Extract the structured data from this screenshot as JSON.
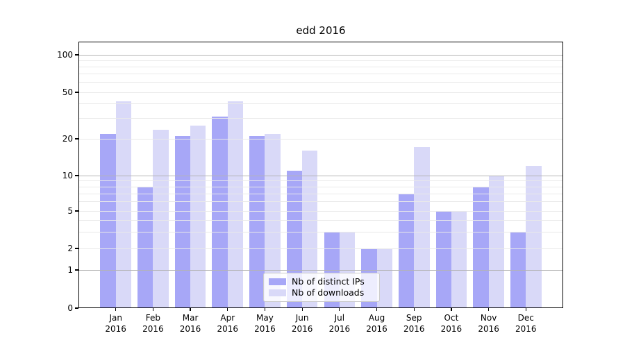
{
  "chart_data": {
    "type": "bar",
    "title": "edd 2016",
    "x_axis": {
      "months": [
        "Jan",
        "Feb",
        "Mar",
        "Apr",
        "May",
        "Jun",
        "Jul",
        "Aug",
        "Sep",
        "Oct",
        "Nov",
        "Dec"
      ],
      "year": "2016"
    },
    "y_axis": {
      "scale": "log",
      "tick_values": [
        0,
        1,
        2,
        5,
        10,
        20,
        50,
        100
      ],
      "ylim": [
        0,
        130
      ],
      "grid": true
    },
    "series": [
      {
        "name": "Nb of distinct IPs",
        "color": "#a7a7f7",
        "values": [
          22,
          8,
          21,
          31,
          21,
          11,
          3,
          2,
          7,
          5,
          8,
          3
        ]
      },
      {
        "name": "Nb of downloads",
        "color": "#d9d9f8",
        "values": [
          42,
          24,
          26,
          42,
          22,
          16,
          3,
          2,
          17,
          5,
          10,
          12
        ]
      }
    ],
    "legend": {
      "position": "bottom-center",
      "entries": [
        "Nb of distinct IPs",
        "Nb of downloads"
      ]
    }
  },
  "colors": {
    "major_grid": "#b3b3b3",
    "minor_grid": "#e9e9e9",
    "spine": "#000000",
    "background": "#ffffff"
  }
}
